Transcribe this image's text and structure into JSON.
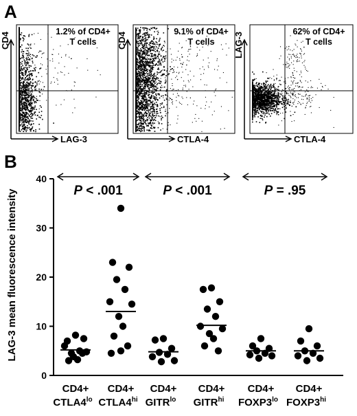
{
  "panel_a": {
    "letter": "A",
    "plots": [
      {
        "y_label": "CD4",
        "x_label": "LAG-3",
        "annotation_line1": "1.2% of CD4+",
        "annotation_line2": "T cells"
      },
      {
        "y_label": "CD4",
        "x_label": "CTLA-4",
        "annotation_line1": "9.1% of CD4+",
        "annotation_line2": "T cells"
      },
      {
        "y_label": "LAG-3",
        "x_label": "CTLA-4",
        "annotation_line1": "62% of CD4+",
        "annotation_line2": "T cells"
      }
    ]
  },
  "panel_b": {
    "letter": "B",
    "p_values": [
      {
        "italic": "P",
        "rest": " < .001"
      },
      {
        "italic": "P",
        "rest": " < .001"
      },
      {
        "italic": "P",
        "rest": " = .95"
      }
    ]
  },
  "chart_data": {
    "type": "scatter",
    "ylabel": "LAG-3 mean fluorescence intensity",
    "ylim": [
      0,
      40
    ],
    "yticks": [
      "0",
      "10",
      "20",
      "30",
      "40"
    ],
    "categories": [
      {
        "line1": "CD4+",
        "base": "CTLA4",
        "sup": "lo"
      },
      {
        "line1": "CD4+",
        "base": "CTLA4",
        "sup": "hi"
      },
      {
        "line1": "CD4+",
        "base": "GITR",
        "sup": "lo"
      },
      {
        "line1": "CD4+",
        "base": "GITR",
        "sup": "hi"
      },
      {
        "line1": "CD4+",
        "base": "FOXP3",
        "sup": "lo"
      },
      {
        "line1": "CD4+",
        "base": "FOXP3",
        "sup": "hi"
      }
    ],
    "means": [
      5.2,
      13.0,
      4.8,
      10.2,
      5.0,
      5.0
    ],
    "points": [
      [
        8.2,
        7.0,
        7.5,
        4.5,
        5.0,
        6.0,
        4.8,
        3.8,
        3.2,
        3.0,
        4.5
      ],
      [
        34.0,
        23.0,
        22.0,
        19.5,
        17.5,
        15.0,
        14.5,
        12.0,
        10.0,
        8.0,
        6.0,
        5.0,
        4.5
      ],
      [
        7.5,
        7.2,
        5.5,
        4.7,
        4.3,
        3.8,
        3.0,
        2.8
      ],
      [
        17.8,
        17.5,
        15.0,
        13.5,
        12.0,
        10.0,
        9.5,
        8.5,
        7.5,
        6.0,
        5.0
      ],
      [
        7.5,
        6.0,
        5.5,
        5.0,
        4.5,
        4.2,
        4.0,
        3.5
      ],
      [
        9.5,
        7.0,
        6.0,
        5.0,
        4.5,
        4.0,
        3.5,
        3.0
      ]
    ],
    "comparisons": [
      [
        0,
        1
      ],
      [
        2,
        3
      ],
      [
        4,
        5
      ]
    ]
  }
}
